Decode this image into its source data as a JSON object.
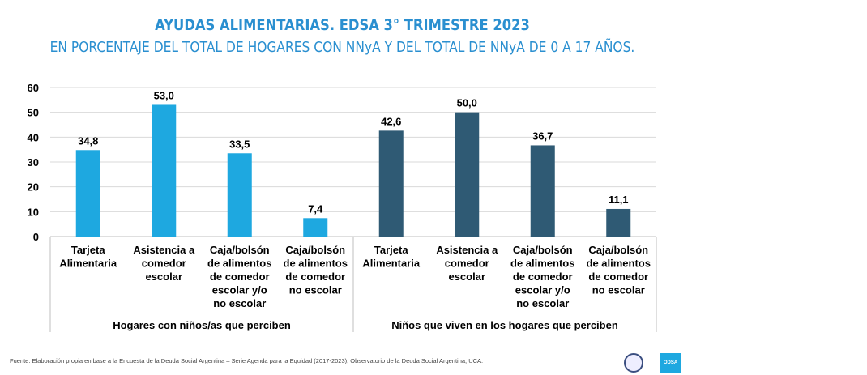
{
  "title": "AYUDAS ALIMENTARIAS. EDSA 3° TRIMESTRE 2023",
  "subtitle": "EN PORCENTAJE DEL TOTAL DE HOGARES CON NNyA Y DEL TOTAL DE NNyA DE 0 A 17 AÑOS.",
  "source": "Fuente: Elaboración propia en base a la Encuesta de la Deuda Social Argentina – Serie Agenda para la Equidad (2017-2023), Observatorio de la Deuda Social Argentina, UCA.",
  "logo_text": "ODSA",
  "chart_data": {
    "type": "bar",
    "ylim": [
      0,
      60
    ],
    "yticks": [
      "0",
      "10",
      "20",
      "30",
      "40",
      "50",
      "60"
    ],
    "grid": true,
    "groups": [
      {
        "label": "Hogares con niños/as que perciben",
        "color": "#1ea8e0",
        "categories": [
          [
            "Tarjeta",
            "Alimentaria"
          ],
          [
            "Asistencia a",
            "comedor",
            "escolar"
          ],
          [
            "Caja/bolsón",
            "de alimentos",
            "de comedor",
            "escolar y/o",
            "no escolar"
          ],
          [
            "Caja/bolsón",
            "de alimentos",
            "de comedor",
            "no escolar"
          ]
        ],
        "values": [
          34.8,
          53.0,
          33.5,
          7.4
        ],
        "labels": [
          "34,8",
          "53,0",
          "33,5",
          "7,4"
        ]
      },
      {
        "label": "Niños que viven en los hogares que perciben",
        "color": "#2f5a74",
        "categories": [
          [
            "Tarjeta",
            "Alimentaria"
          ],
          [
            "Asistencia a",
            "comedor",
            "escolar"
          ],
          [
            "Caja/bolsón",
            "de alimentos",
            "de comedor",
            "escolar y/o",
            "no escolar"
          ],
          [
            "Caja/bolsón",
            "de alimentos",
            "de comedor",
            "no escolar"
          ]
        ],
        "values": [
          42.6,
          50.0,
          36.7,
          11.1
        ],
        "labels": [
          "42,6",
          "50,0",
          "36,7",
          "11,1"
        ]
      }
    ]
  }
}
